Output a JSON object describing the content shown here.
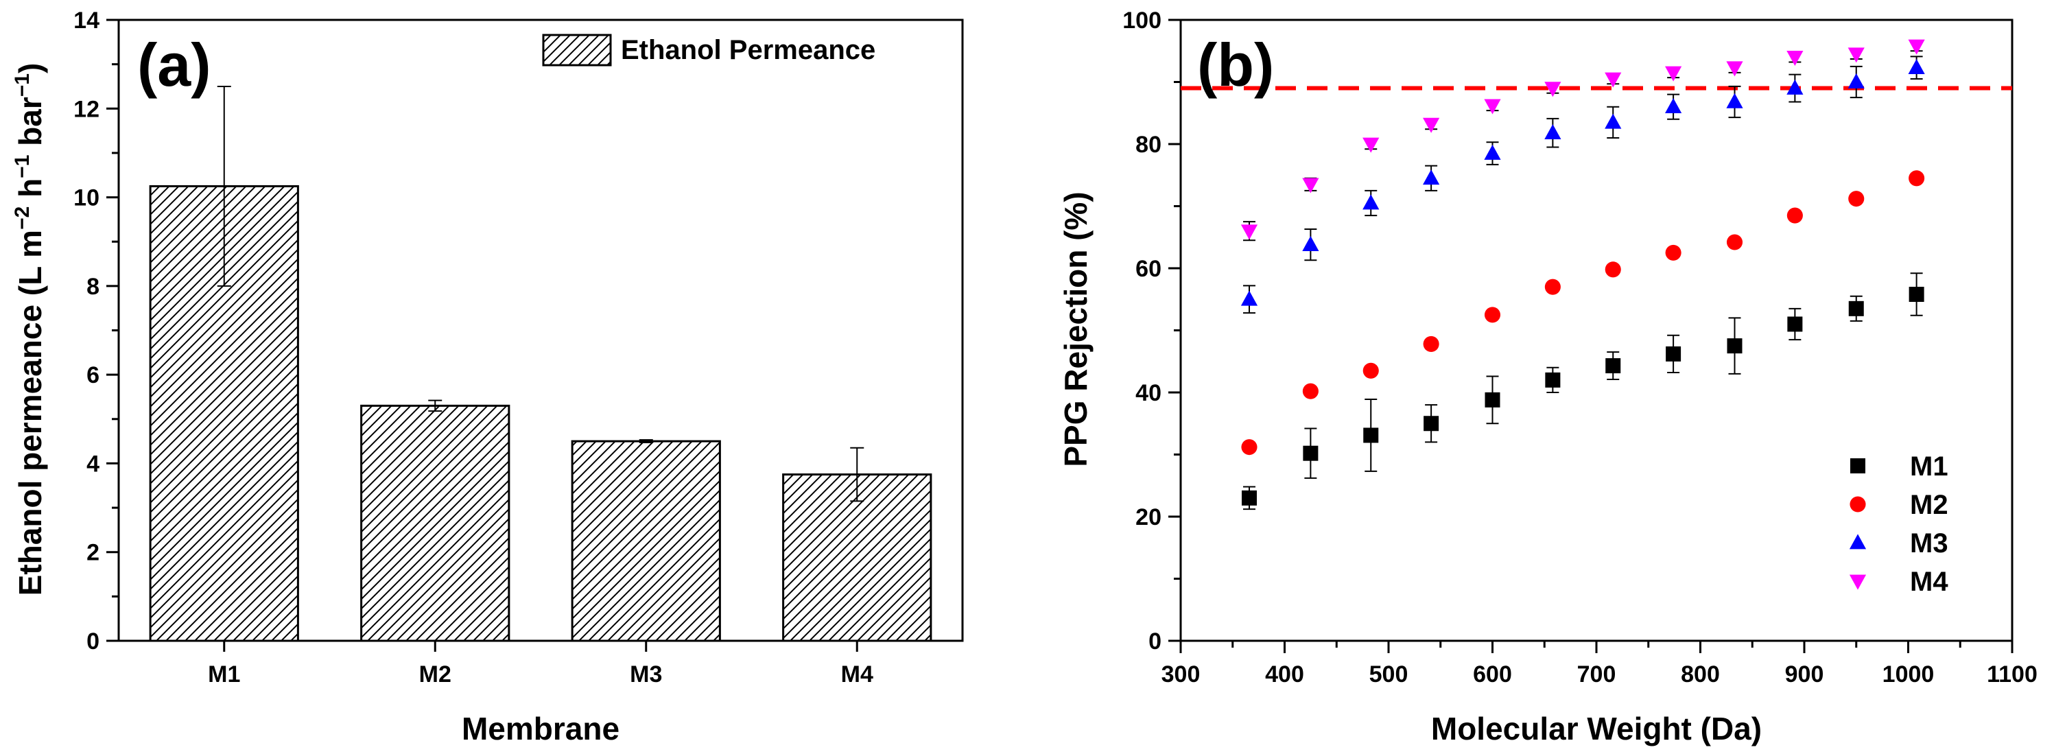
{
  "chart_data": [
    {
      "panel": "(a)",
      "type": "bar",
      "title": "",
      "xlabel": "Membrane",
      "ylabel": "Ethanol permeance (L m⁻² h⁻¹ bar⁻¹)",
      "ylabel_parts": {
        "prefix": "Ethanol permeance (L m",
        "sup1": "−2",
        "mid1": " h",
        "sup2": "−1",
        "mid2": " bar",
        "sup3": "−1",
        "suffix": ")"
      },
      "ylim": [
        0,
        14
      ],
      "yticks": [
        0,
        2,
        4,
        6,
        8,
        10,
        12,
        14
      ],
      "categories": [
        "M1",
        "M2",
        "M3",
        "M4"
      ],
      "series": [
        {
          "name": "Ethanol Permeance",
          "values": [
            10.25,
            5.3,
            4.5,
            3.75
          ],
          "errors": [
            2.25,
            0.12,
            0.03,
            0.6
          ]
        }
      ],
      "legend_position": "top-right",
      "legend_pattern": "hatched"
    },
    {
      "panel": "(b)",
      "type": "scatter",
      "title": "",
      "xlabel": "Molecular Weight (Da)",
      "ylabel": "PPG Rejection (%)",
      "xlim": [
        300,
        1100
      ],
      "ylim": [
        0,
        100
      ],
      "xticks": [
        300,
        400,
        500,
        600,
        700,
        800,
        900,
        1000,
        1100
      ],
      "yticks": [
        0,
        20,
        40,
        60,
        80,
        100
      ],
      "x": [
        366,
        425,
        483,
        541,
        600,
        658,
        716,
        774,
        833,
        891,
        950,
        1008
      ],
      "series": [
        {
          "name": "M1",
          "marker": "square",
          "color": "#000000",
          "values": [
            23,
            30.2,
            33.1,
            35,
            38.8,
            42,
            44.3,
            46.2,
            47.5,
            51,
            53.5,
            55.8
          ],
          "errors": [
            1.8,
            4,
            5.8,
            3,
            3.8,
            2,
            2.2,
            3,
            4.5,
            2.5,
            2,
            3.4
          ]
        },
        {
          "name": "M2",
          "marker": "circle",
          "color": "#ff0000",
          "values": [
            31.2,
            40.2,
            43.5,
            47.8,
            52.5,
            57,
            59.8,
            62.5,
            64.2,
            68.5,
            71.2,
            74.5
          ],
          "errors": [
            0.5,
            0.5,
            0.5,
            0.5,
            0.5,
            0.5,
            0.5,
            0.5,
            0.5,
            0.5,
            0.5,
            0.5
          ]
        },
        {
          "name": "M3",
          "marker": "triangle-up",
          "color": "#0000ff",
          "values": [
            55,
            63.8,
            70.5,
            74.5,
            78.5,
            81.8,
            83.5,
            86,
            86.8,
            89,
            90,
            92.3
          ],
          "errors": [
            2.2,
            2.5,
            2,
            2,
            1.8,
            2.3,
            2.5,
            2,
            2.5,
            2.2,
            2.5,
            1.8
          ]
        },
        {
          "name": "M4",
          "marker": "triangle-down",
          "color": "#ff00ff",
          "values": [
            66,
            73.5,
            80,
            83.2,
            86.2,
            89,
            90.5,
            91.5,
            92.3,
            94,
            94.5,
            95.8
          ],
          "errors": [
            1.5,
            1,
            0.8,
            0.8,
            0.8,
            0.8,
            0.8,
            0.8,
            0.8,
            0.8,
            0.8,
            0.8
          ]
        }
      ],
      "reference_line": {
        "y": 89,
        "color": "#ff0000",
        "style": "dashed"
      },
      "legend_position": "bottom-right"
    }
  ]
}
